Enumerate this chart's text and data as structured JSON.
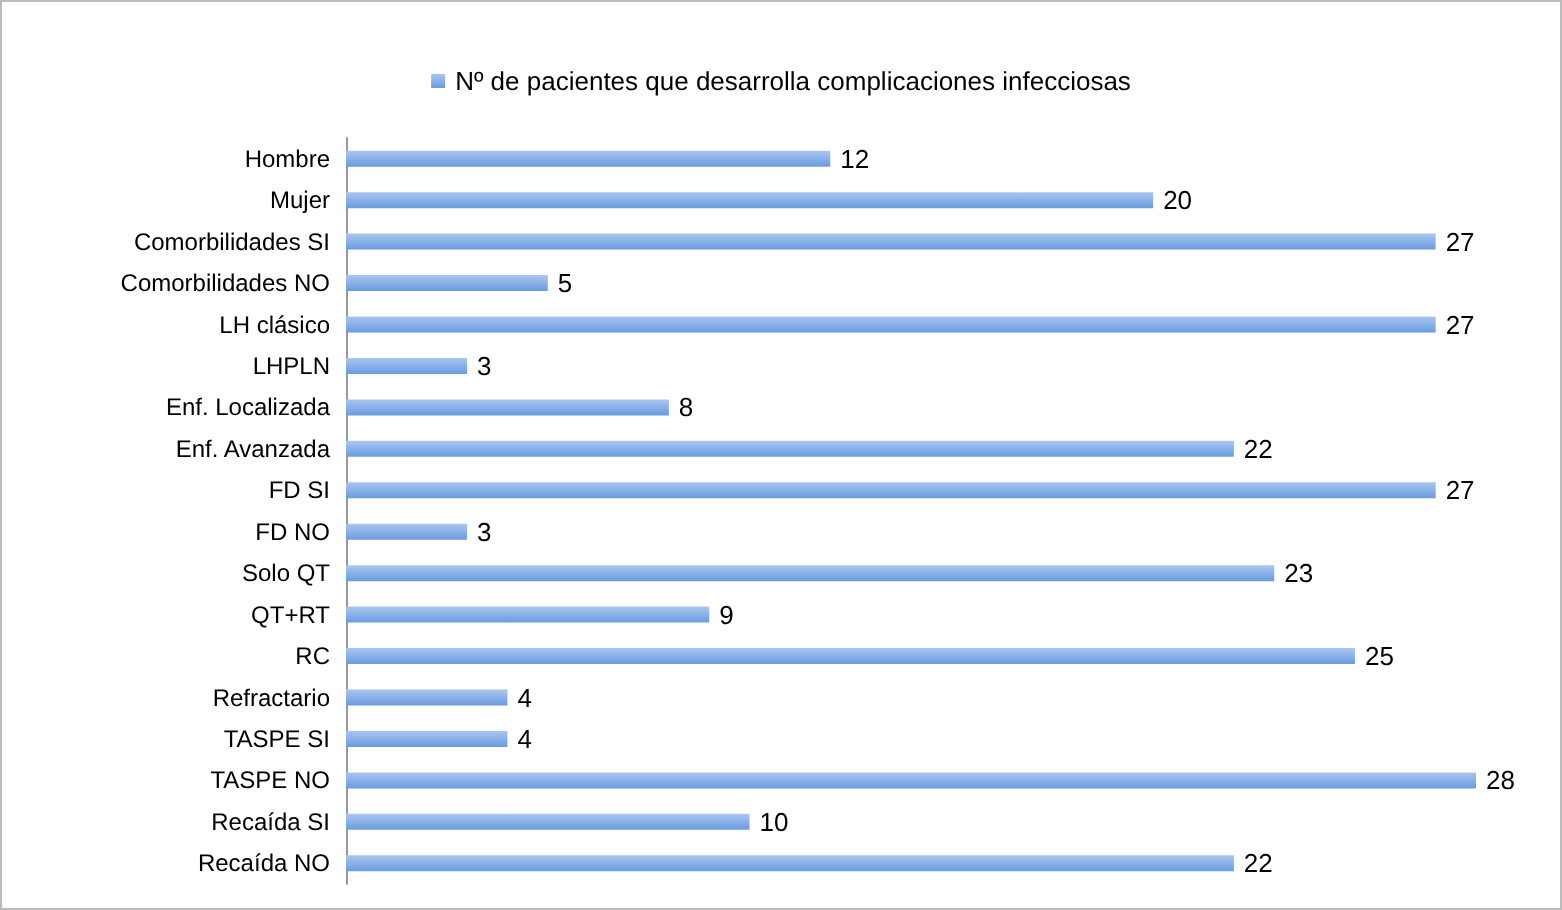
{
  "chart_data": {
    "type": "bar",
    "orientation": "horizontal",
    "data_labels": true,
    "legend": "top",
    "grid": false,
    "categories": [
      "Hombre",
      "Mujer",
      "Comorbilidades SI",
      "Comorbilidades NO",
      "LH clásico",
      "LHPLN",
      "Enf. Localizada",
      "Enf. Avanzada",
      "FD SI",
      "FD NO",
      "Solo QT",
      "QT+RT",
      "RC",
      "Refractario",
      "TASPE SI",
      "TASPE NO",
      "Recaída SI",
      "Recaída NO"
    ],
    "series": [
      {
        "name": "Nº de pacientes que desarrolla complicaciones infecciosas",
        "color": "#6a9be0",
        "values": [
          12,
          20,
          27,
          5,
          27,
          3,
          8,
          22,
          27,
          3,
          23,
          9,
          25,
          4,
          4,
          28,
          10,
          22
        ]
      }
    ]
  }
}
